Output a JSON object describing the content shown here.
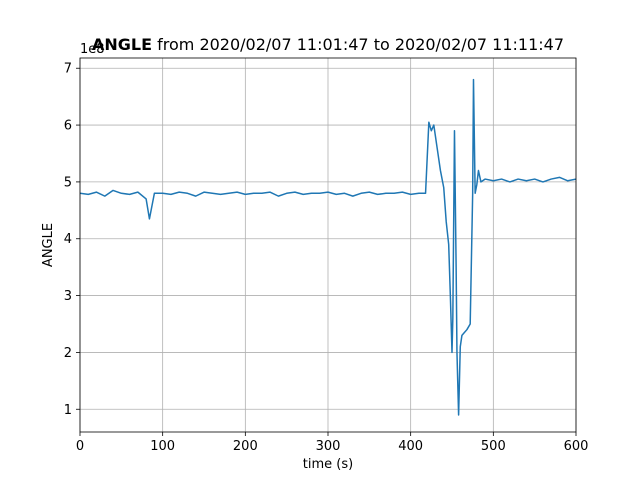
{
  "chart_data": {
    "type": "line",
    "title_bold": "ANGLE",
    "title_rest": " from 2020/02/07 11:01:47 to 2020/02/07 11:11:47",
    "xlabel": "time (s)",
    "ylabel": "ANGLE",
    "y_offset_label": "1e8",
    "xlim": [
      0,
      600
    ],
    "ylim": [
      0.6,
      7.18
    ],
    "xticks": [
      0,
      100,
      200,
      300,
      400,
      500,
      600
    ],
    "yticks": [
      1,
      2,
      3,
      4,
      5,
      6,
      7
    ],
    "grid": true,
    "series": [
      {
        "color": "#1f77b4",
        "x": [
          0,
          10,
          20,
          30,
          40,
          50,
          60,
          70,
          80,
          84,
          90,
          100,
          110,
          120,
          130,
          140,
          150,
          160,
          170,
          180,
          190,
          200,
          210,
          220,
          230,
          240,
          250,
          260,
          270,
          280,
          290,
          300,
          310,
          320,
          330,
          340,
          350,
          360,
          370,
          380,
          390,
          400,
          410,
          418,
          422,
          425,
          428,
          432,
          436,
          440,
          443,
          446,
          448,
          450,
          451,
          453,
          455,
          456,
          458,
          460,
          462,
          465,
          468,
          472,
          475,
          476,
          477,
          478,
          480,
          482,
          485,
          490,
          500,
          510,
          520,
          530,
          540,
          550,
          560,
          570,
          580,
          590,
          600
        ],
        "values": [
          4.8,
          4.78,
          4.82,
          4.75,
          4.85,
          4.8,
          4.78,
          4.82,
          4.7,
          4.35,
          4.8,
          4.8,
          4.78,
          4.82,
          4.8,
          4.75,
          4.82,
          4.8,
          4.78,
          4.8,
          4.82,
          4.78,
          4.8,
          4.8,
          4.82,
          4.75,
          4.8,
          4.82,
          4.78,
          4.8,
          4.8,
          4.82,
          4.78,
          4.8,
          4.75,
          4.8,
          4.82,
          4.78,
          4.8,
          4.8,
          4.82,
          4.78,
          4.8,
          4.8,
          6.05,
          5.9,
          6.0,
          5.6,
          5.2,
          4.9,
          4.3,
          3.9,
          3.0,
          2.0,
          2.6,
          5.9,
          3.5,
          2.0,
          0.9,
          2.1,
          2.3,
          2.35,
          2.4,
          2.5,
          4.8,
          6.8,
          5.8,
          4.8,
          4.95,
          5.2,
          5.0,
          5.05,
          5.02,
          5.05,
          5.0,
          5.05,
          5.02,
          5.05,
          5.0,
          5.05,
          5.08,
          5.02,
          5.05
        ]
      }
    ]
  }
}
